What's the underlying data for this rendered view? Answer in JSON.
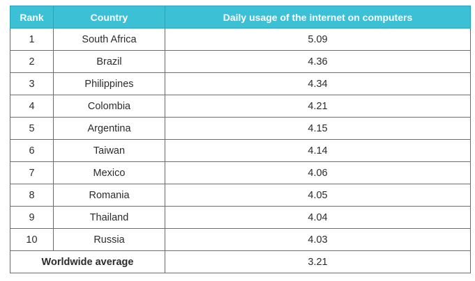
{
  "chart_data": {
    "type": "table",
    "columns": [
      "Rank",
      "Country",
      "Daily usage of the internet on computers"
    ],
    "rows": [
      {
        "rank": "1",
        "country": "South Africa",
        "value": "5.09"
      },
      {
        "rank": "2",
        "country": "Brazil",
        "value": "4.36"
      },
      {
        "rank": "3",
        "country": "Philippines",
        "value": "4.34"
      },
      {
        "rank": "4",
        "country": "Colombia",
        "value": "4.21"
      },
      {
        "rank": "5",
        "country": "Argentina",
        "value": "4.15"
      },
      {
        "rank": "6",
        "country": "Taiwan",
        "value": "4.14"
      },
      {
        "rank": "7",
        "country": "Mexico",
        "value": "4.06"
      },
      {
        "rank": "8",
        "country": "Romania",
        "value": "4.05"
      },
      {
        "rank": "9",
        "country": "Thailand",
        "value": "4.04"
      },
      {
        "rank": "10",
        "country": "Russia",
        "value": "4.03"
      }
    ],
    "footer": {
      "label": "Worldwide average",
      "value": "3.21"
    }
  },
  "colors": {
    "header_bg": "#3cc0d6",
    "header_text": "#ffffff",
    "border": "#6b6b6b"
  }
}
